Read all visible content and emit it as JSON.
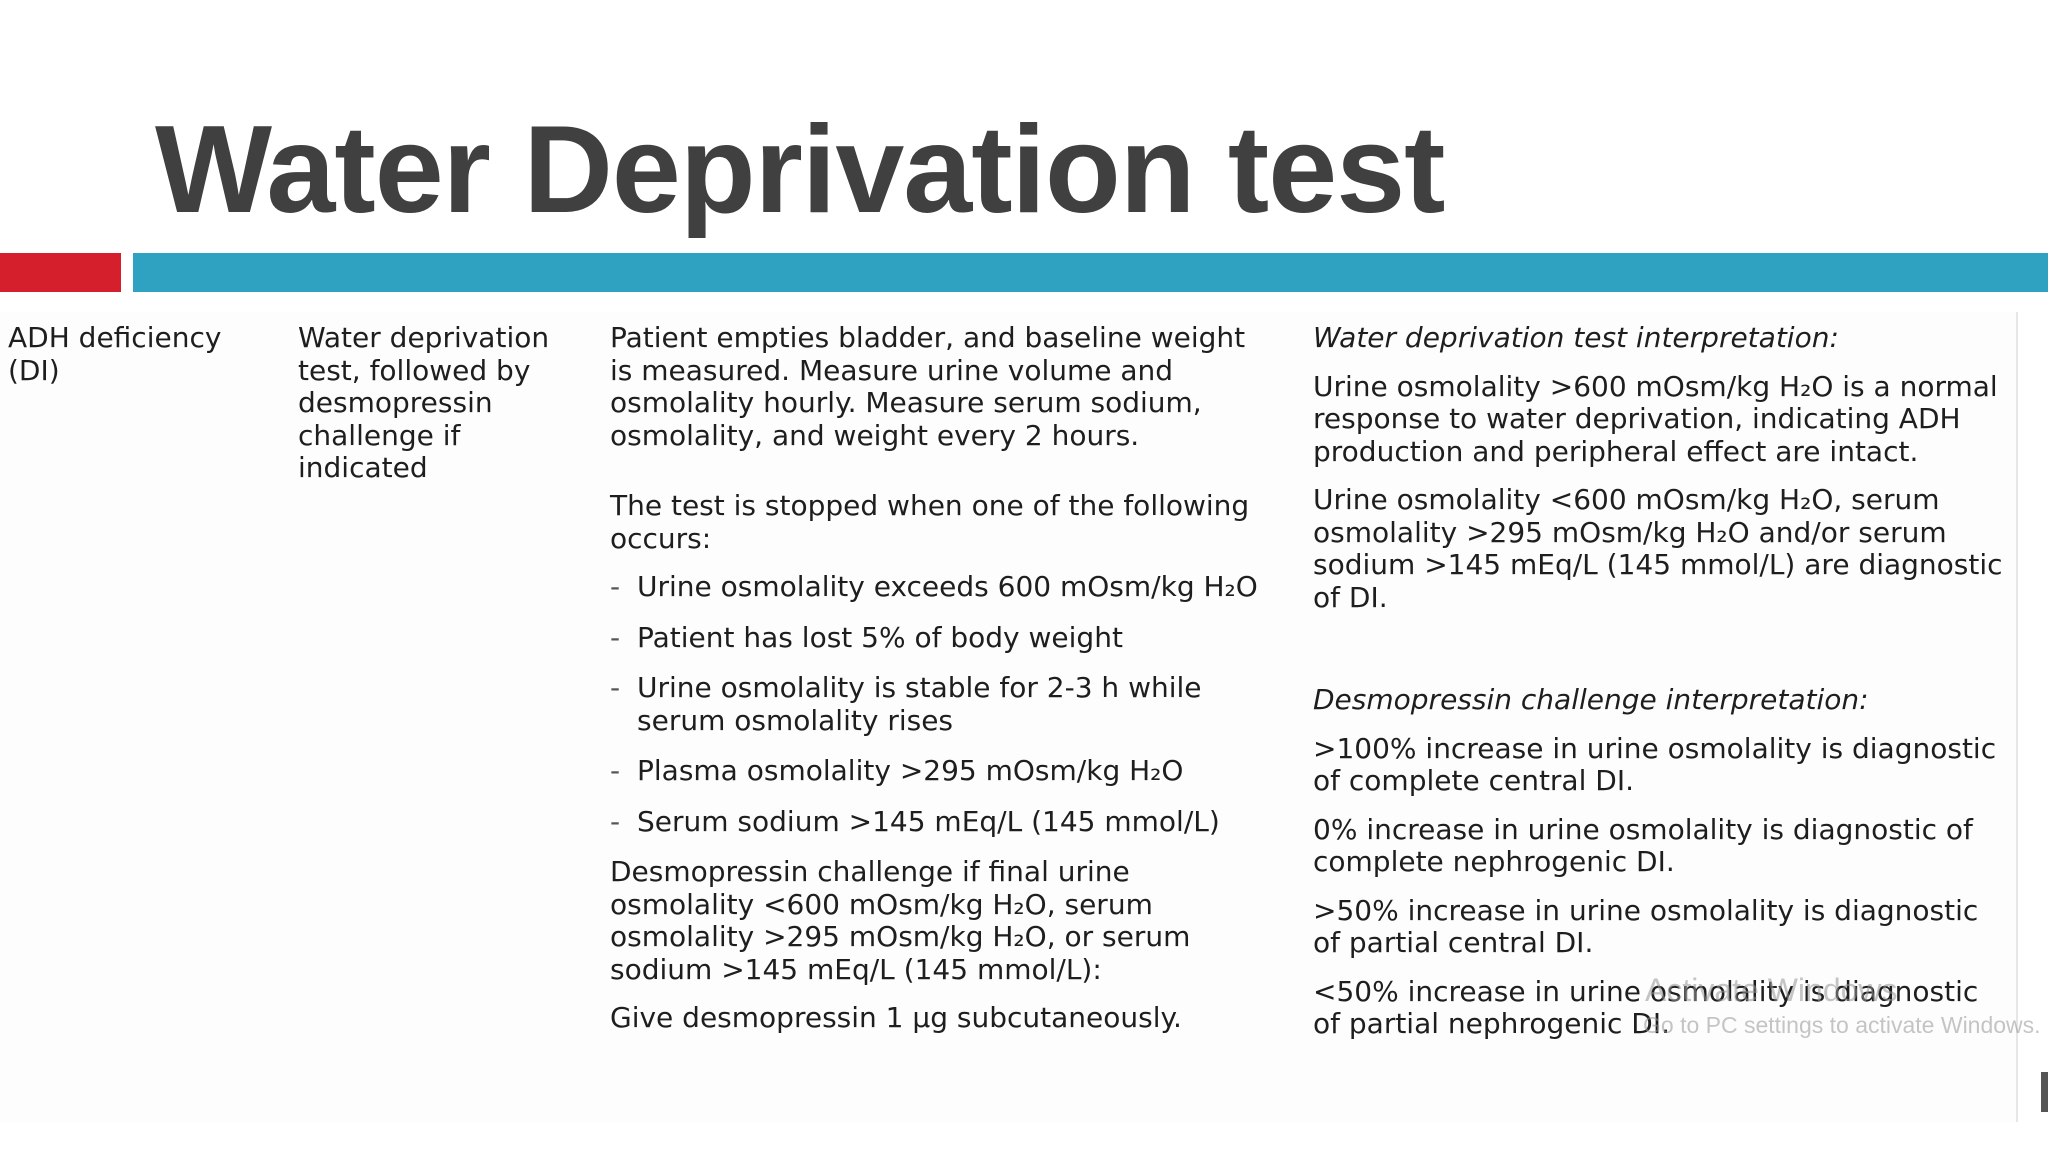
{
  "slide": {
    "title": "Water Deprivation test",
    "accent_red": "#d51f2c",
    "accent_teal": "#2fa1c1"
  },
  "table": {
    "condition": "ADH deficiency (DI)",
    "test": "Water deprivation test, followed by desmopressin challenge if indicated",
    "procedure": {
      "intro": "Patient empties bladder, and baseline weight is measured. Measure urine volume and osmolality hourly. Measure serum sodium, osmolality, and weight every 2 hours.",
      "stop_intro": "The test is stopped when one of the following occurs:",
      "stop_criteria": [
        "Urine osmolality exceeds 600 mOsm/kg H₂O",
        "Patient has lost 5% of body weight",
        "Urine osmolality is stable for 2-3 h while serum osmolality rises",
        "Plasma osmolality >295 mOsm/kg H₂O",
        "Serum sodium >145 mEq/L (145 mmol/L)"
      ],
      "challenge_condition": "Desmopressin challenge if final urine osmolality <600 mOsm/kg H₂O, serum osmolality >295 mOsm/kg H₂O, or serum sodium >145 mEq/L (145 mmol/L):",
      "challenge_action": "Give desmopressin 1 µg subcutaneously."
    },
    "interpretation": {
      "wd_heading": "Water deprivation test interpretation:",
      "wd_items": [
        "Urine osmolality >600 mOsm/kg H₂O is a normal response to water deprivation, indicating ADH production and peripheral effect are intact.",
        "Urine osmolality <600 mOsm/kg H₂O, serum osmolality >295 mOsm/kg H₂O and/or serum sodium >145 mEq/L (145 mmol/L) are diagnostic of DI."
      ],
      "dc_heading": "Desmopressin challenge interpretation:",
      "dc_items": [
        ">100% increase in urine osmolality is diagnostic of complete central DI.",
        "0% increase in urine osmolality is diagnostic of complete nephrogenic DI.",
        ">50% increase in urine osmolality is diagnostic of partial central DI.",
        "<50% increase in urine osmolality is diagnostic of partial nephrogenic DI."
      ]
    }
  },
  "watermark": {
    "line1": "Activate Windows",
    "line2": "Go to PC settings to activate Windows."
  }
}
